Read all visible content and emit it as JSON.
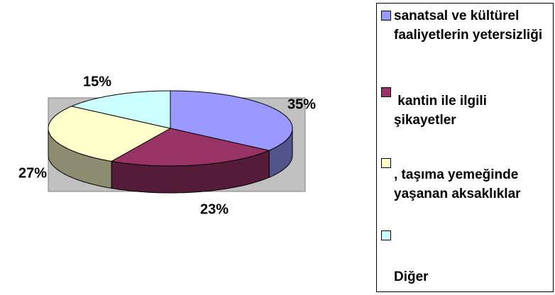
{
  "chart_data": {
    "type": "pie",
    "categories": [
      "sanatsal ve kültürel faaliyetlerin yetersizliği",
      " kantin ile ilgili şikayetler",
      ", taşıma yemeğinde yaşanan aksaklıklar",
      "Diğer"
    ],
    "values": [
      35,
      23,
      27,
      15
    ],
    "value_labels": [
      "35%",
      "23%",
      "27%",
      "15%"
    ],
    "colors": [
      "#9999ff",
      "#993366",
      "#ffffcc",
      "#ccffff"
    ]
  }
}
